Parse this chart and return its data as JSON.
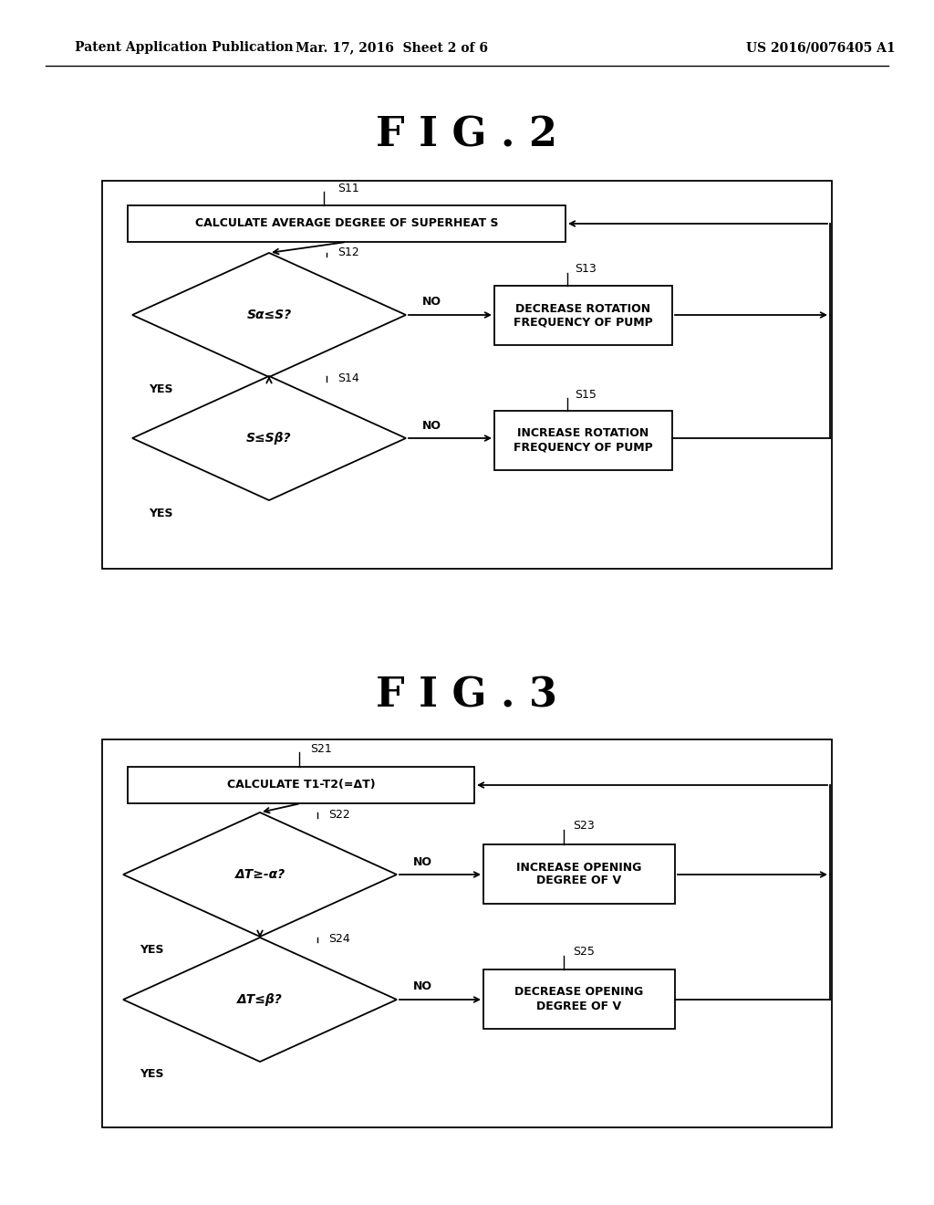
{
  "bg_color": "#ffffff",
  "header_left": "Patent Application Publication",
  "header_mid": "Mar. 17, 2016  Sheet 2 of 6",
  "header_right": "US 2016/0076405 A1",
  "fig2_title": "F I G . 2",
  "fig3_title": "F I G . 3",
  "fig2": {
    "s11_label": "S11",
    "s11_text": "CALCULATE AVERAGE DEGREE OF SUPERHEAT S",
    "s12_label": "S12",
    "s12_text": "Sα≤S?",
    "s13_label": "S13",
    "s13_text": "DECREASE ROTATION\nFREQUENCY OF PUMP",
    "s14_label": "S14",
    "s14_text": "S≤Sβ?",
    "s15_label": "S15",
    "s15_text": "INCREASE ROTATION\nFREQUENCY OF PUMP",
    "yes_label": "YES",
    "no_label": "NO"
  },
  "fig3": {
    "s21_label": "S21",
    "s21_text": "CALCULATE T1-T2(=ΔT)",
    "s22_label": "S22",
    "s22_text": "ΔT≥-α?",
    "s23_label": "S23",
    "s23_text": "INCREASE OPENING\nDEGREE OF V",
    "s24_label": "S24",
    "s24_text": "ΔT≤β?",
    "s25_label": "S25",
    "s25_text": "DECREASE OPENING\nDEGREE OF V",
    "yes_label": "YES",
    "no_label": "NO"
  }
}
